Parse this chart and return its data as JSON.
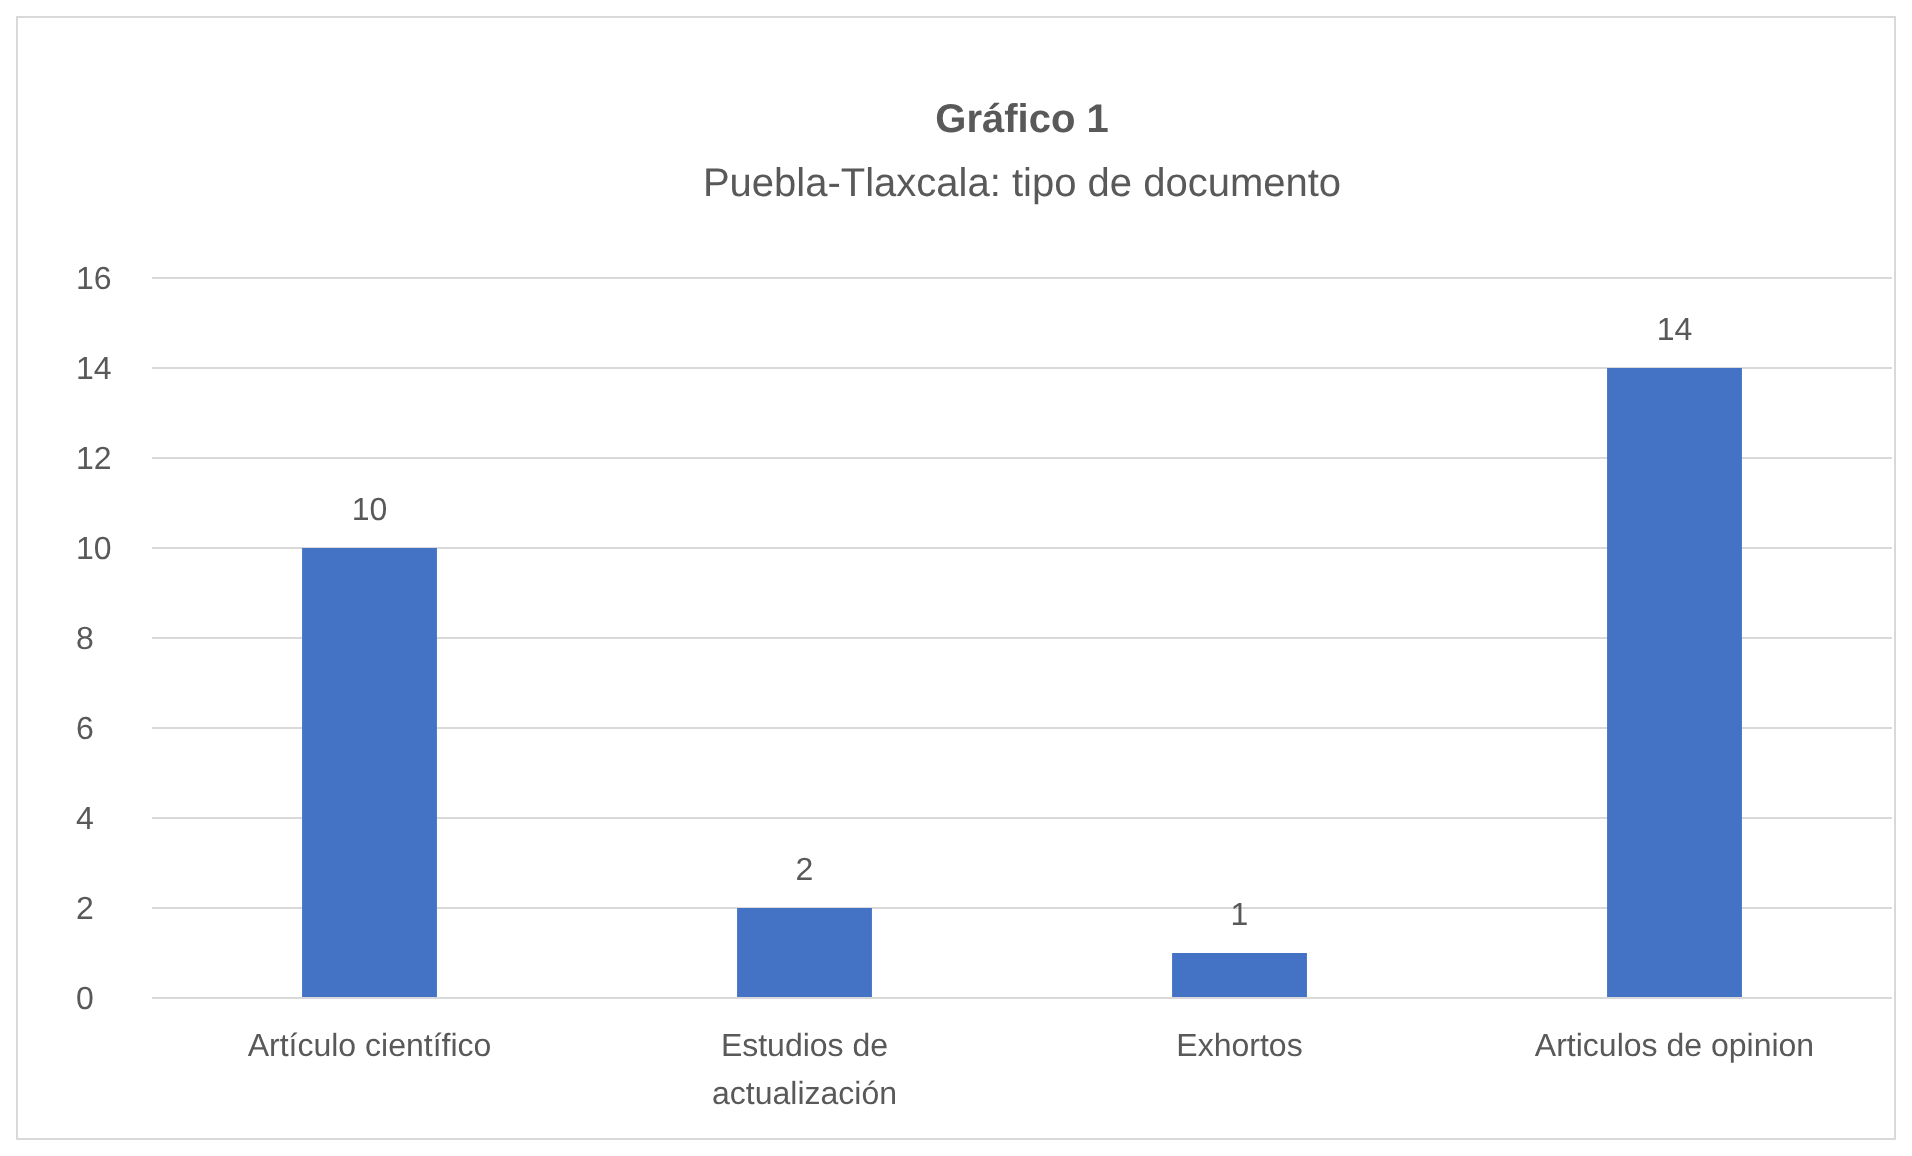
{
  "chart_data": {
    "type": "bar",
    "title": "Gráfico 1",
    "subtitle": "Puebla-Tlaxcala: tipo de documento",
    "categories": [
      "Artículo científico",
      "Estudios de actualización",
      "Exhortos",
      "Articulos de opinion"
    ],
    "values": [
      10,
      2,
      1,
      14
    ],
    "color": "#4472c4",
    "ylim": [
      0,
      16
    ],
    "yticks": [
      0,
      2,
      4,
      6,
      8,
      10,
      12,
      14,
      16
    ],
    "grid": "y",
    "data_labels": true
  }
}
